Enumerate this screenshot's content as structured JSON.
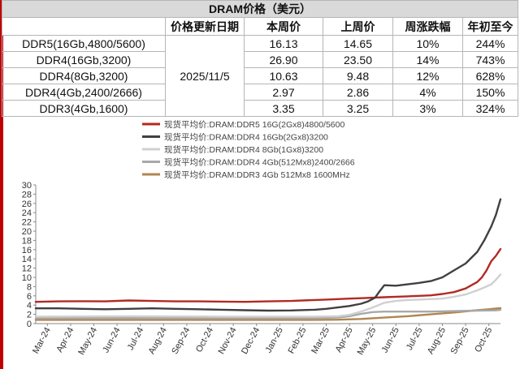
{
  "table": {
    "title": "DRAM价格（美元）",
    "headers": [
      "",
      "价格更新日期",
      "本周价",
      "上周价",
      "周涨跌幅",
      "年初至今"
    ],
    "update_date": "2025/11/5",
    "rows": [
      {
        "product": "DDR5(16Gb,4800/5600)",
        "this_week": "16.13",
        "last_week": "14.65",
        "wow": "10%",
        "ytd": "244%"
      },
      {
        "product": "DDR4(16Gb,3200)",
        "this_week": "26.90",
        "last_week": "23.50",
        "wow": "14%",
        "ytd": "743%"
      },
      {
        "product": "DDR4(8Gb,3200)",
        "this_week": "10.63",
        "last_week": "9.48",
        "wow": "12%",
        "ytd": "628%"
      },
      {
        "product": "DDR4(4Gb,2400/2666)",
        "this_week": "2.97",
        "last_week": "2.86",
        "wow": "4%",
        "ytd": "150%"
      },
      {
        "product": "DDR3(4Gb,1600)",
        "this_week": "3.35",
        "last_week": "3.25",
        "wow": "3%",
        "ytd": "324%"
      }
    ]
  },
  "chart_data": {
    "type": "line",
    "title": "",
    "xlabel": "",
    "ylabel": "",
    "ylim": [
      0,
      30
    ],
    "yticks": [
      "0",
      "2",
      "4",
      "6",
      "8",
      "10",
      "12",
      "14",
      "16",
      "18",
      "20",
      "22",
      "24",
      "26",
      "28",
      "30"
    ],
    "x_ticks": [
      "Mar-24",
      "Apr-24",
      "May-24",
      "Jun-24",
      "Jul-24",
      "Aug-24",
      "Sep-24",
      "Oct-24",
      "Nov-24",
      "Dec-24",
      "Jan-25",
      "Feb-25",
      "Mar-25",
      "Apr-25",
      "May-25",
      "Jun-25",
      "Jul-25",
      "Aug-25",
      "Sep-25",
      "Oct-25"
    ],
    "x_range": [
      0,
      20
    ],
    "grid": false,
    "legend_position": "top",
    "series": [
      {
        "name": "现货平均价:DRAM:DDR5 16G(2Gx8)4800/5600",
        "color": "#b22a22",
        "x": [
          0,
          1,
          2,
          3,
          4,
          5,
          6,
          7,
          8,
          9,
          10,
          11,
          12,
          12.5,
          13,
          13.5,
          14,
          14.5,
          15,
          15.5,
          16,
          16.5,
          17,
          17.5,
          18,
          18.5,
          19,
          19.2,
          19.4,
          19.6,
          19.8,
          20
        ],
        "y": [
          4.7,
          4.8,
          4.85,
          4.8,
          5.0,
          4.9,
          4.8,
          4.8,
          4.75,
          4.7,
          4.8,
          4.9,
          5.1,
          5.2,
          5.3,
          5.4,
          5.5,
          5.6,
          5.7,
          5.8,
          5.9,
          6.0,
          6.1,
          6.4,
          6.8,
          7.6,
          9.0,
          10.0,
          11.5,
          13.5,
          14.65,
          16.13
        ]
      },
      {
        "name": "现货平均价:DRAM:DDR4 16Gb(2Gx8)3200",
        "color": "#404040",
        "x": [
          0,
          1,
          2,
          3,
          4,
          5,
          6,
          7,
          8,
          9,
          10,
          11,
          12,
          12.5,
          13,
          13.5,
          14,
          14.3,
          14.6,
          14.8,
          15,
          15.5,
          16,
          16.5,
          17,
          17.5,
          18,
          18.5,
          19,
          19.3,
          19.6,
          19.8,
          20
        ],
        "y": [
          3.3,
          3.3,
          3.2,
          3.1,
          3.2,
          3.3,
          3.2,
          3.1,
          3.0,
          2.9,
          2.8,
          2.85,
          3.0,
          3.2,
          3.5,
          3.8,
          4.3,
          4.8,
          5.6,
          7.0,
          8.3,
          8.2,
          8.5,
          8.8,
          9.2,
          10.0,
          11.5,
          13.0,
          15.5,
          18.0,
          21.0,
          23.5,
          26.9
        ]
      },
      {
        "name": "现货平均价:DRAM:DDR4 8Gb(1Gx8)3200",
        "color": "#d0d0d0",
        "x": [
          0,
          2,
          4,
          6,
          8,
          10,
          12,
          13,
          13.5,
          14,
          14.5,
          15,
          15.5,
          16,
          16.5,
          17,
          17.5,
          18,
          18.5,
          19,
          19.3,
          19.6,
          19.8,
          20
        ],
        "y": [
          1.5,
          1.55,
          1.6,
          1.55,
          1.5,
          1.5,
          1.5,
          1.6,
          1.9,
          2.6,
          3.5,
          4.5,
          4.9,
          5.1,
          5.2,
          5.3,
          5.4,
          5.8,
          6.3,
          7.2,
          7.8,
          8.5,
          9.48,
          10.63
        ]
      },
      {
        "name": "现货平均价:DRAM:DDR4 4Gb(512Mx8)2400/2666",
        "color": "#a8a8a8",
        "x": [
          0,
          2,
          4,
          6,
          8,
          10,
          12,
          13,
          13.5,
          14,
          14.5,
          15,
          16,
          17,
          18,
          19,
          19.5,
          19.8,
          20
        ],
        "y": [
          1.2,
          1.2,
          1.2,
          1.2,
          1.2,
          1.2,
          1.2,
          1.3,
          1.6,
          2.1,
          2.5,
          2.6,
          2.6,
          2.6,
          2.7,
          2.8,
          2.85,
          2.86,
          2.97
        ]
      },
      {
        "name": "现货平均价:DRAM:DDR3 4Gb 512Mx8 1600MHz",
        "color": "#b08550",
        "x": [
          0,
          2,
          4,
          6,
          8,
          10,
          12,
          13,
          14,
          15,
          16,
          17,
          18,
          19,
          19.5,
          19.8,
          20
        ],
        "y": [
          0.8,
          0.8,
          0.8,
          0.8,
          0.8,
          0.8,
          0.8,
          0.85,
          1.0,
          1.3,
          1.6,
          2.0,
          2.4,
          2.9,
          3.1,
          3.25,
          3.35
        ]
      }
    ]
  }
}
